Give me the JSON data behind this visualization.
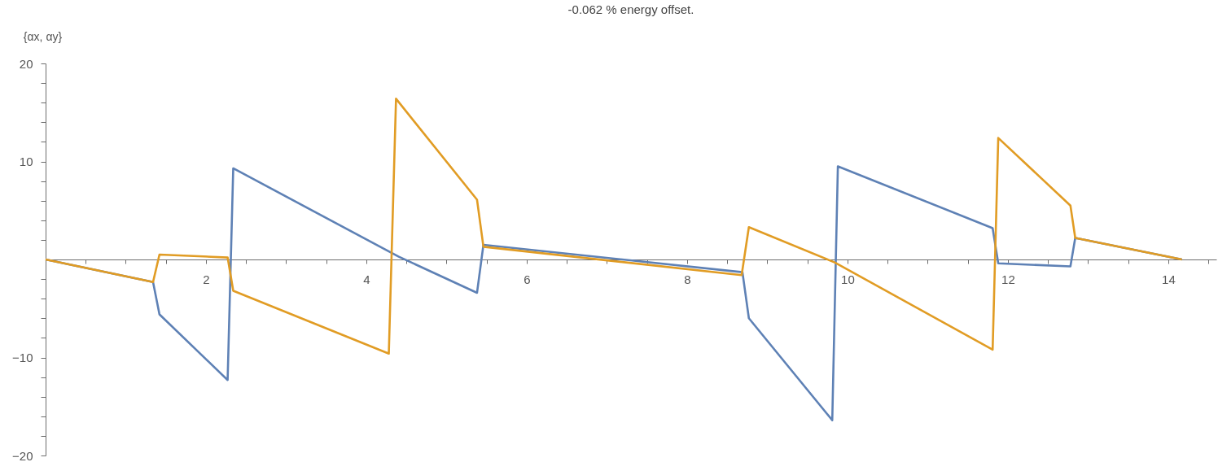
{
  "chart_data": {
    "type": "line",
    "title": "-0.062 % energy offset.",
    "ylabel": "{αx, αy}",
    "xlim": [
      0,
      14.6
    ],
    "ylim": [
      -20,
      20
    ],
    "xticks": [
      {
        "value": 0.5,
        "label": null
      },
      {
        "value": 1,
        "label": null
      },
      {
        "value": 1.5,
        "label": null
      },
      2,
      {
        "value": 2.5,
        "label": null
      },
      {
        "value": 3,
        "label": null
      },
      {
        "value": 3.5,
        "label": null
      },
      4,
      {
        "value": 4.5,
        "label": null
      },
      {
        "value": 5,
        "label": null
      },
      {
        "value": 5.5,
        "label": null
      },
      6,
      {
        "value": 6.5,
        "label": null
      },
      {
        "value": 7,
        "label": null
      },
      {
        "value": 7.5,
        "label": null
      },
      8,
      {
        "value": 8.5,
        "label": null
      },
      {
        "value": 9,
        "label": null
      },
      {
        "value": 9.5,
        "label": null
      },
      10,
      {
        "value": 10.5,
        "label": null
      },
      {
        "value": 11,
        "label": null
      },
      {
        "value": 11.5,
        "label": null
      },
      12,
      {
        "value": 12.5,
        "label": null
      },
      {
        "value": 13,
        "label": null
      },
      {
        "value": 13.5,
        "label": null
      },
      14,
      {
        "value": 14.5,
        "label": null
      }
    ],
    "yticks": [
      -20,
      {
        "value": -18,
        "label": null
      },
      {
        "value": -16,
        "label": null
      },
      {
        "value": -14,
        "label": null
      },
      {
        "value": -12,
        "label": null
      },
      -10,
      {
        "value": -8,
        "label": null
      },
      {
        "value": -6,
        "label": null
      },
      {
        "value": -4,
        "label": null
      },
      {
        "value": -2,
        "label": null
      },
      {
        "value": 2,
        "label": null
      },
      {
        "value": 4,
        "label": null
      },
      {
        "value": 6,
        "label": null
      },
      {
        "value": 8,
        "label": null
      },
      10,
      {
        "value": 12,
        "label": null
      },
      {
        "value": 14,
        "label": null
      },
      {
        "value": 16,
        "label": null
      },
      {
        "value": 18,
        "label": null
      },
      20
    ],
    "grid": false,
    "legend": false,
    "marker": "none",
    "line_style": "solid",
    "series": [
      {
        "color": "#5e81b5",
        "x": [
          0,
          1.34,
          1.42,
          2.27,
          2.34,
          4.4,
          5.38,
          5.46,
          8.69,
          8.77,
          9.81,
          9.88,
          11.81,
          11.88,
          12.78,
          12.84,
          14.17
        ],
        "values": [
          0,
          -2.3,
          -5.6,
          -12.3,
          9.3,
          0.3,
          -3.4,
          1.5,
          -1.3,
          -6,
          -16.4,
          9.5,
          3.2,
          -0.4,
          -0.7,
          2.2,
          0
        ]
      },
      {
        "color": "#e19c24",
        "x": [
          0,
          1.34,
          1.42,
          2.27,
          2.34,
          4.28,
          4.37,
          5.38,
          5.46,
          8.68,
          8.77,
          9.84,
          11.81,
          11.88,
          12.78,
          12.84,
          14.17
        ],
        "values": [
          0,
          -2.3,
          0.5,
          0.2,
          -3.2,
          -9.6,
          16.4,
          6.1,
          1.3,
          -1.6,
          3.3,
          -0.3,
          -9.2,
          12.4,
          5.5,
          2.2,
          0
        ]
      }
    ]
  }
}
